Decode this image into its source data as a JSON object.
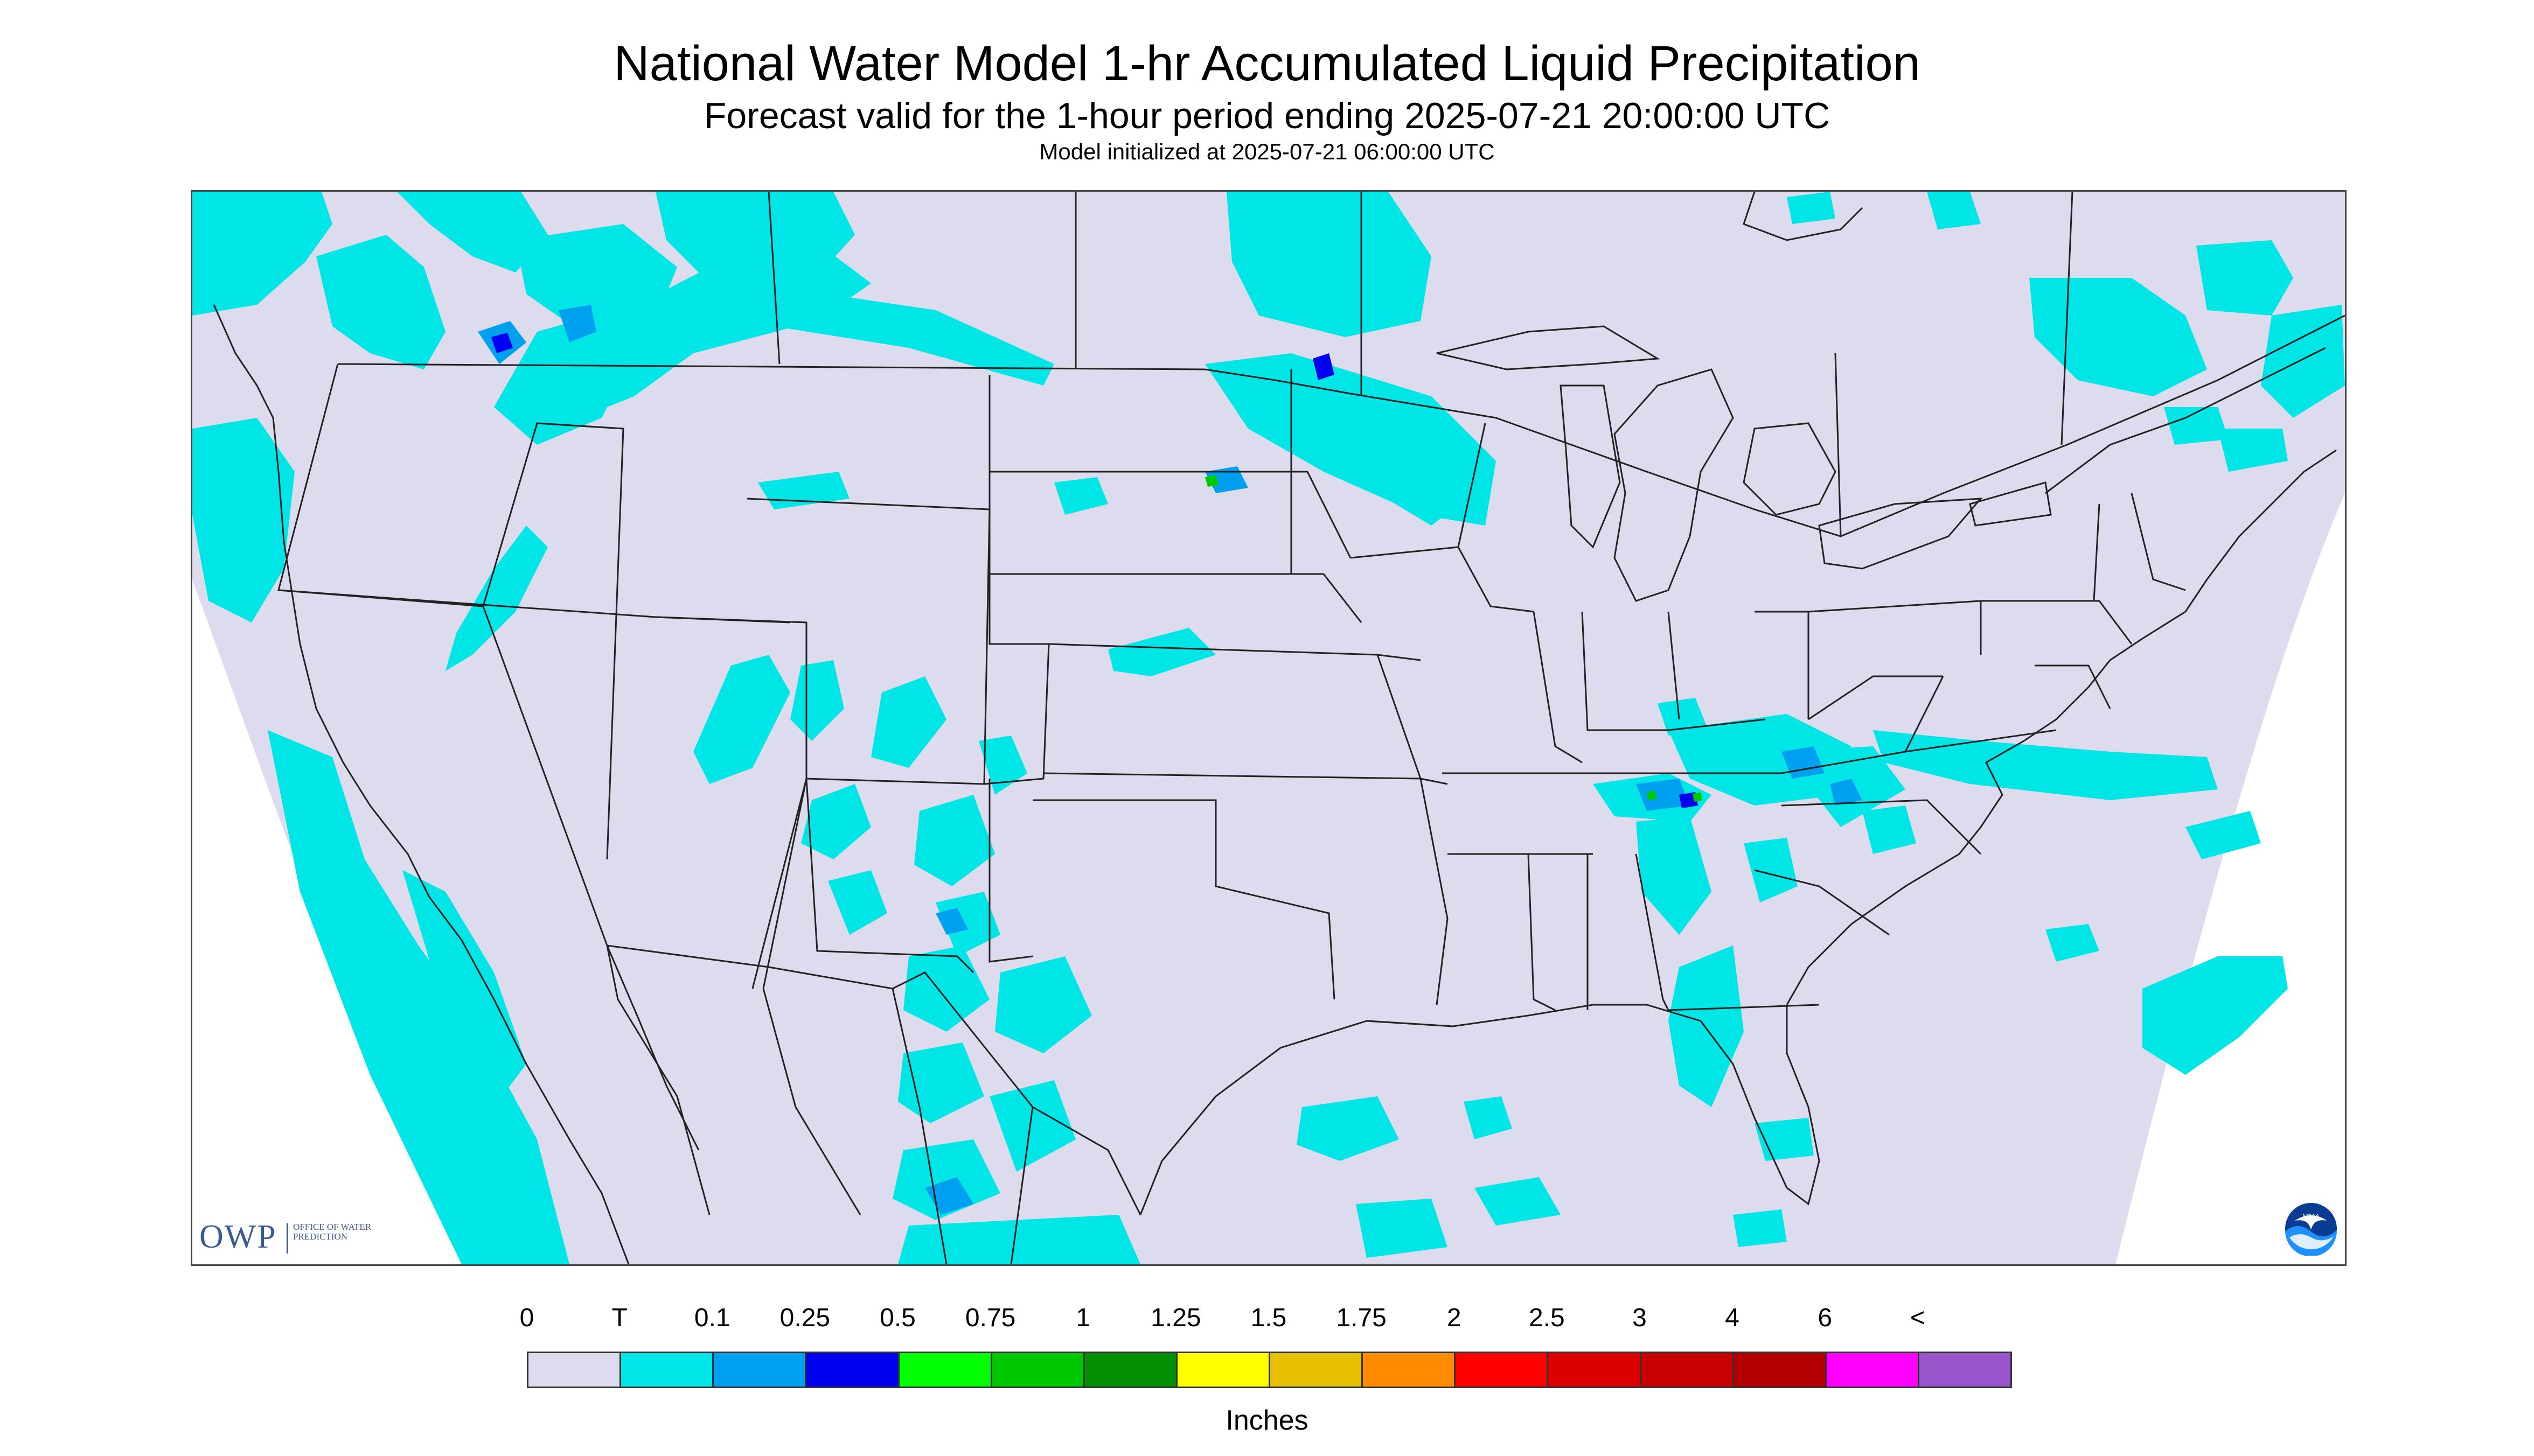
{
  "title": "National Water Model 1-hr Accumulated Liquid Precipitation",
  "subtitle": "Forecast valid for the 1-hour period ending 2025-07-21 20:00:00 UTC",
  "init_line": "Model initialized at 2025-07-21 06:00:00 UTC",
  "logos": {
    "owp_abbrev": "OWP",
    "owp_name": "OFFICE OF WATER PREDICTION",
    "noaa": "NOAA"
  },
  "legend": {
    "unit_label": "Inches",
    "tick_labels": [
      "0",
      "T",
      "0.1",
      "0.25",
      "0.5",
      "0.75",
      "1",
      "1.25",
      "1.5",
      "1.75",
      "2",
      "2.5",
      "3",
      "4",
      "6",
      "<"
    ],
    "bin_colors": [
      "#dcdcee",
      "#00e5e5",
      "#00a0f0",
      "#0000f0",
      "#00ff00",
      "#00c800",
      "#009000",
      "#ffff00",
      "#e6c000",
      "#ff8c00",
      "#ff0000",
      "#dc0000",
      "#c80000",
      "#b40000",
      "#ff00ff",
      "#9955cc"
    ]
  },
  "colors": {
    "domain_fill": "#dcdcee",
    "outside_domain": "#ffffff",
    "boundaries": "#222222",
    "trace": "#00e5e5",
    "light": "#00a0f0",
    "moderate": "#0000f0",
    "heavy": "#00c800"
  }
}
